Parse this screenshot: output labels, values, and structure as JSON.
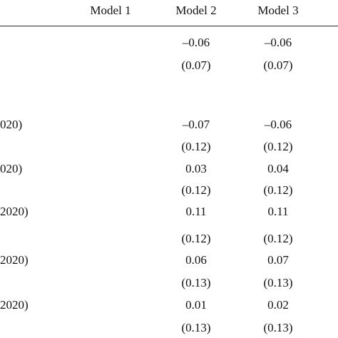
{
  "table": {
    "header": [
      "Model 1",
      "Model 2",
      "Model 3"
    ],
    "rows": [
      {
        "values": [
          "–0.06",
          "–0.06"
        ]
      },
      {
        "values": [
          "(0.07)",
          "(0.07)"
        ]
      },
      {
        "label": "020)",
        "values": [
          "–0.07",
          "–0.06"
        ]
      },
      {
        "values": [
          "(0.12)",
          "(0.12)"
        ]
      },
      {
        "label": "020)",
        "values": [
          "0.03",
          "0.04"
        ]
      },
      {
        "values": [
          "(0.12)",
          "(0.12)"
        ]
      },
      {
        "label": "2020)",
        "values": [
          "0.11",
          "0.11"
        ]
      },
      {
        "values": [
          "(0.12)",
          "(0.12)"
        ]
      },
      {
        "label": "2020)",
        "values": [
          "0.06",
          "0.07"
        ]
      },
      {
        "values": [
          "(0.13)",
          "(0.13)"
        ]
      },
      {
        "label": "2020)",
        "values": [
          "0.01",
          "0.02"
        ]
      },
      {
        "values": [
          "(0.13)",
          "(0.13)"
        ]
      }
    ]
  }
}
